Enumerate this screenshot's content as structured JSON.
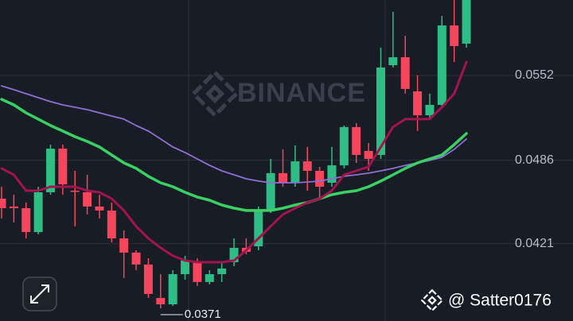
{
  "chart_data": {
    "type": "candlestick",
    "watermark": "BINANCE",
    "credit": "@ Satter0176",
    "low_label": "0.0371",
    "up_color": "#2ebd85",
    "down_color": "#f6465d",
    "grid": true,
    "ylim": [
      0.03607,
      0.06108
    ],
    "yticks": [
      0.0552,
      0.0486,
      0.0421
    ],
    "open": [
      0.0456,
      0.04499,
      0.04486,
      0.043,
      0.0461,
      0.0495,
      0.04622,
      0.0461,
      0.04499,
      0.04468,
      0.04251,
      0.0414,
      0.04047,
      0.03787,
      0.03737,
      0.03972,
      0.04065,
      0.03911,
      0.03972,
      0.04065,
      0.04177,
      0.04189,
      0.04468,
      0.04759,
      0.04684,
      0.04851,
      0.04777,
      0.04684,
      0.0482,
      0.05118,
      0.04932,
      0.04901,
      0.056,
      0.05662,
      0.05396,
      0.0521,
      0.05291,
      0.0591,
      0.05768
    ],
    "high": [
      0.04653,
      0.04591,
      0.0453,
      0.04653,
      0.04981,
      0.04981,
      0.04777,
      0.04746,
      0.04591,
      0.0453,
      0.04313,
      0.04158,
      0.04096,
      0.03972,
      0.04003,
      0.04115,
      0.04096,
      0.04003,
      0.04065,
      0.04251,
      0.04251,
      0.04499,
      0.0487,
      0.04944,
      0.04975,
      0.04963,
      0.04808,
      0.04963,
      0.0513,
      0.05149,
      0.04994,
      0.05737,
      0.06015,
      0.05829,
      0.0552,
      0.05378,
      0.05984,
      0.06108,
      0.06108
    ],
    "low": [
      0.04406,
      0.04375,
      0.04251,
      0.04282,
      0.04591,
      0.04591,
      0.04344,
      0.04437,
      0.04406,
      0.0422,
      0.03942,
      0.04003,
      0.03787,
      0.03706,
      0.03725,
      0.03929,
      0.0388,
      0.03892,
      0.03911,
      0.04034,
      0.04127,
      0.04158,
      0.04449,
      0.04653,
      0.04653,
      0.04622,
      0.0456,
      0.04653,
      0.04796,
      0.04839,
      0.04777,
      0.0487,
      0.05582,
      0.05378,
      0.05087,
      0.0518,
      0.05272,
      0.05625,
      0.05737
    ],
    "close": [
      0.04486,
      0.04486,
      0.043,
      0.0461,
      0.0495,
      0.04672,
      0.04616,
      0.04499,
      0.04468,
      0.04251,
      0.0414,
      0.04047,
      0.03818,
      0.03737,
      0.03972,
      0.04078,
      0.03911,
      0.03972,
      0.04016,
      0.04177,
      0.04146,
      0.04468,
      0.04759,
      0.04684,
      0.04851,
      0.04777,
      0.04653,
      0.0482,
      0.05118,
      0.04901,
      0.0487,
      0.05582,
      0.05662,
      0.05415,
      0.0521,
      0.05291,
      0.0591,
      0.05749,
      0.06108
    ],
    "lines": [
      {
        "color": "#8f6ed5",
        "values": [
          0.05439,
          0.05409,
          0.05378,
          0.05347,
          0.05316,
          0.05291,
          0.05272,
          0.05254,
          0.05229,
          0.05204,
          0.0518,
          0.0513,
          0.05087,
          0.05025,
          0.04963,
          0.0492,
          0.0487,
          0.0482,
          0.04777,
          0.04746,
          0.04715,
          0.04697,
          0.04684,
          0.04684,
          0.04684,
          0.0469,
          0.04697,
          0.04715,
          0.04734,
          0.04746,
          0.04759,
          0.04777,
          0.04796,
          0.0482,
          0.04839,
          0.04858,
          0.04882,
          0.04944,
          0.05025
        ]
      },
      {
        "color": "#3ad063",
        "values": [
          0.05334,
          0.05291,
          0.05229,
          0.0518,
          0.0513,
          0.05087,
          0.05043,
          0.05006,
          0.04963,
          0.04901,
          0.04839,
          0.04796,
          0.04734,
          0.04684,
          0.04653,
          0.0461,
          0.04573,
          0.04548,
          0.04511,
          0.04486,
          0.04468,
          0.04468,
          0.04468,
          0.04486,
          0.04511,
          0.0453,
          0.0456,
          0.04591,
          0.0461,
          0.04622,
          0.04653,
          0.04697,
          0.04746,
          0.04796,
          0.04839,
          0.0487,
          0.04901,
          0.04981,
          0.05068
        ]
      },
      {
        "color": "#a3144f",
        "values": [
          0.04796,
          0.04746,
          0.04622,
          0.04622,
          0.04653,
          0.04653,
          0.04653,
          0.04622,
          0.0461,
          0.0456,
          0.04468,
          0.04344,
          0.04251,
          0.04177,
          0.04115,
          0.04078,
          0.04065,
          0.04065,
          0.04065,
          0.04078,
          0.04158,
          0.04251,
          0.04344,
          0.04437,
          0.04486,
          0.0453,
          0.0456,
          0.04622,
          0.04746,
          0.04777,
          0.04808,
          0.04963,
          0.05118,
          0.0518,
          0.0518,
          0.0518,
          0.05272,
          0.05378,
          0.05625
        ]
      }
    ]
  }
}
